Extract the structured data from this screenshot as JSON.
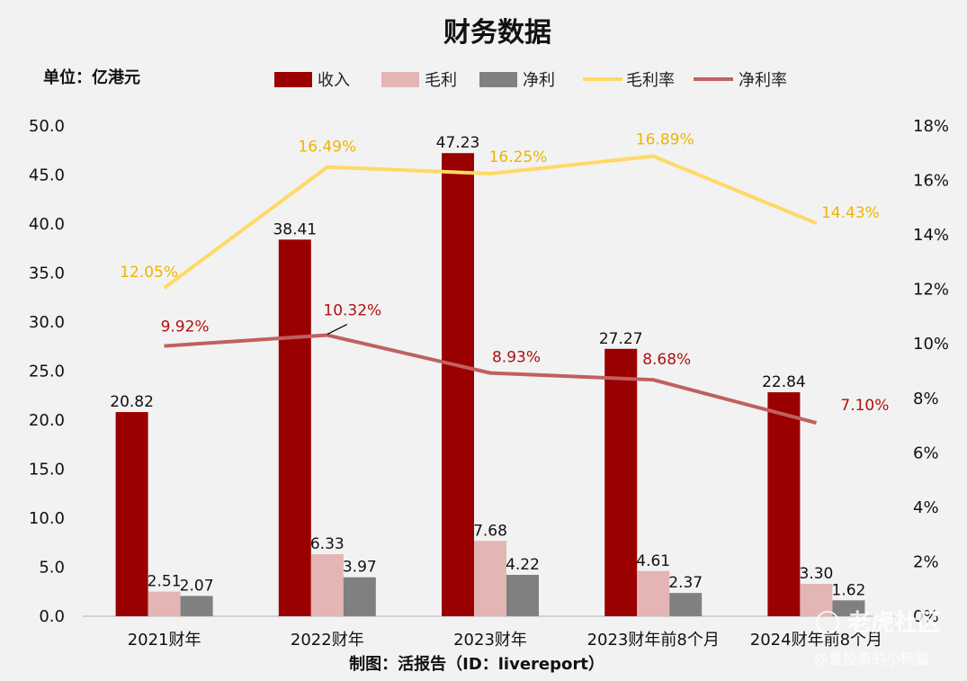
{
  "chart_data": {
    "type": "bar",
    "title": "财务数据",
    "unit_label": "单位：亿港元",
    "categories": [
      "2021财年",
      "2022财年",
      "2023财年",
      "2023财年前8个月",
      "2024财年前8个月"
    ],
    "y_left": {
      "min": 0,
      "max": 50,
      "step": 5,
      "tick_labels": [
        "0.0",
        "5.0",
        "10.0",
        "15.0",
        "20.0",
        "25.0",
        "30.0",
        "35.0",
        "40.0",
        "45.0",
        "50.0"
      ]
    },
    "y_right": {
      "min": 0,
      "max": 18,
      "step": 2,
      "tick_labels": [
        "0%",
        "2%",
        "4%",
        "6%",
        "8%",
        "10%",
        "12%",
        "14%",
        "16%",
        "18%"
      ]
    },
    "grid": false,
    "legend_position": "top",
    "series": [
      {
        "name": "收入",
        "kind": "bar",
        "axis": "left",
        "color": "#9b0000",
        "values": [
          20.82,
          38.41,
          47.23,
          27.27,
          22.84
        ],
        "labels": [
          "20.82",
          "38.41",
          "47.23",
          "27.27",
          "22.84"
        ]
      },
      {
        "name": "毛利",
        "kind": "bar",
        "axis": "left",
        "color": "#e3b5b5",
        "values": [
          2.51,
          6.33,
          7.68,
          4.61,
          3.3
        ],
        "labels": [
          "2.51",
          "6.33",
          "7.68",
          "4.61",
          "3.30"
        ]
      },
      {
        "name": "净利",
        "kind": "bar",
        "axis": "left",
        "color": "#808080",
        "values": [
          2.07,
          3.97,
          4.22,
          2.37,
          1.62
        ],
        "labels": [
          "2.07",
          "3.97",
          "4.22",
          "2.37",
          "1.62"
        ]
      },
      {
        "name": "毛利率",
        "kind": "line",
        "axis": "right",
        "color": "#ffd966",
        "label_color": "#f0b400",
        "values": [
          12.05,
          16.49,
          16.25,
          16.89,
          14.43
        ],
        "labels": [
          "12.05%",
          "16.49%",
          "16.25%",
          "16.89%",
          "14.43%"
        ]
      },
      {
        "name": "净利率",
        "kind": "line",
        "axis": "right",
        "color": "#c06060",
        "label_color": "#b01010",
        "values": [
          9.92,
          10.32,
          8.93,
          8.68,
          7.1
        ],
        "labels": [
          "9.92%",
          "10.32%",
          "8.93%",
          "8.68%",
          "7.10%"
        ]
      }
    ]
  },
  "footer": {
    "credit": "制图：活报告（ID：livereport）"
  },
  "watermark": {
    "main": "老虎社区",
    "sub": "@爱投资的小熊猫"
  }
}
